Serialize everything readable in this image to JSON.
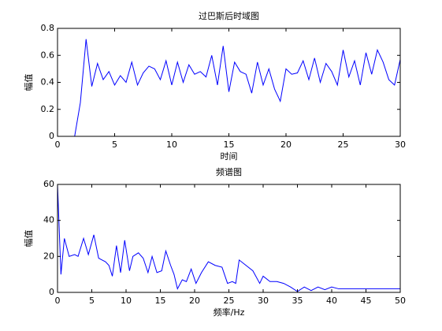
{
  "chart_data": [
    {
      "type": "line",
      "title": "过巴斯后时域图",
      "x_label": "时间",
      "y_label": "幅值",
      "xlim": [
        0,
        30
      ],
      "ylim": [
        0,
        0.8
      ],
      "xticks": [
        0,
        5,
        10,
        15,
        20,
        25,
        30
      ],
      "yticks": [
        0,
        0.2,
        0.4,
        0.6,
        0.8
      ],
      "series": [
        {
          "color": "#0000ff",
          "x": [
            0,
            0.5,
            1,
            1.5,
            2,
            2.5,
            3,
            3.5,
            4,
            4.5,
            5,
            5.5,
            6,
            6.5,
            7,
            7.5,
            8,
            8.5,
            9,
            9.5,
            10,
            10.5,
            11,
            11.5,
            12,
            12.5,
            13,
            13.5,
            14,
            14.5,
            15,
            15.5,
            16,
            16.5,
            17,
            17.5,
            18,
            18.5,
            19,
            19.5,
            20,
            20.5,
            21,
            21.5,
            22,
            22.5,
            23,
            23.5,
            24,
            24.5,
            25,
            25.5,
            26,
            26.5,
            27,
            27.5,
            28,
            28.5,
            29,
            29.5,
            30
          ],
          "values": [
            0,
            0,
            0,
            0,
            0.25,
            0.72,
            0.37,
            0.54,
            0.42,
            0.48,
            0.38,
            0.45,
            0.4,
            0.55,
            0.38,
            0.47,
            0.52,
            0.5,
            0.42,
            0.56,
            0.38,
            0.55,
            0.4,
            0.53,
            0.46,
            0.48,
            0.44,
            0.6,
            0.38,
            0.67,
            0.33,
            0.55,
            0.48,
            0.46,
            0.32,
            0.55,
            0.38,
            0.5,
            0.35,
            0.26,
            0.5,
            0.46,
            0.47,
            0.56,
            0.42,
            0.58,
            0.4,
            0.54,
            0.48,
            0.38,
            0.64,
            0.44,
            0.56,
            0.38,
            0.62,
            0.46,
            0.64,
            0.55,
            0.42,
            0.38,
            0.57
          ]
        }
      ]
    },
    {
      "type": "line",
      "title": "频谱图",
      "x_label": "频率/Hz",
      "y_label": "幅值",
      "xlim": [
        0,
        50
      ],
      "ylim": [
        0,
        60
      ],
      "xticks": [
        0,
        5,
        10,
        15,
        20,
        25,
        30,
        35,
        40,
        45,
        50
      ],
      "yticks": [
        0,
        20,
        40,
        60
      ],
      "series": [
        {
          "color": "#0000ff",
          "x": [
            0,
            0.5,
            1,
            1.7,
            2.5,
            3,
            3.8,
            4.5,
            5.3,
            6,
            7,
            7.5,
            8,
            8.6,
            9.2,
            9.8,
            10.5,
            11,
            11.8,
            12.5,
            13.2,
            13.8,
            14.5,
            15.2,
            15.8,
            16.5,
            17,
            17.5,
            18.2,
            18.8,
            19.5,
            20.2,
            21,
            22,
            23,
            24,
            24.8,
            25.5,
            26,
            26.5,
            27.5,
            28.5,
            29.5,
            30,
            31,
            32,
            33,
            34,
            35,
            36,
            37,
            38,
            39,
            40,
            41,
            42,
            45,
            50
          ],
          "values": [
            60,
            10,
            30,
            20,
            21,
            20,
            30,
            21,
            32,
            19,
            17,
            15,
            9,
            26,
            11,
            29,
            12,
            20,
            22,
            19,
            11,
            20,
            11,
            12,
            23,
            15,
            10,
            2,
            7,
            6,
            13,
            5,
            11,
            17,
            15,
            14,
            5,
            6,
            5,
            18,
            15,
            12,
            5,
            9,
            6,
            6,
            5,
            3,
            0.5,
            3,
            1,
            3,
            1.5,
            3,
            2,
            2,
            2,
            2
          ]
        }
      ]
    }
  ]
}
